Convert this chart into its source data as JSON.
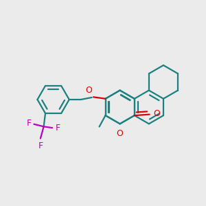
{
  "background_color": "#ebebeb",
  "bond_color": "#1a8080",
  "oxygen_color": "#dd0000",
  "fluorine_color": "#bb00bb",
  "bond_lw": 1.6,
  "figsize": [
    3.0,
    3.0
  ],
  "dpi": 100,
  "hex_r": 0.082,
  "xlim": [
    0.02,
    1.02
  ],
  "ylim": [
    0.02,
    1.02
  ]
}
